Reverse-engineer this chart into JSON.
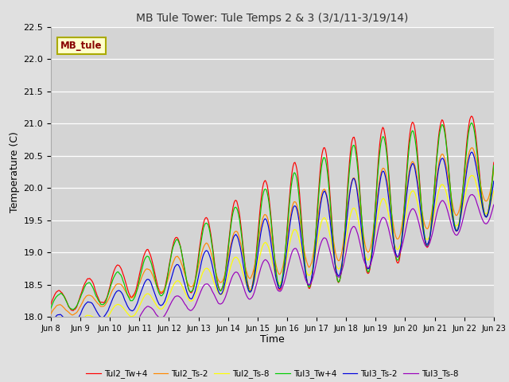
{
  "title": "MB Tule Tower: Tule Temps 2 & 3 (3/1/11-3/19/14)",
  "xlabel": "Time",
  "ylabel": "Temperature (C)",
  "ylim": [
    18.0,
    22.5
  ],
  "background_color": "#e0e0e0",
  "plot_bg_color": "#d4d4d4",
  "grid_color": "#ffffff",
  "series": [
    {
      "name": "Tul2_Tw+4",
      "color": "#ff0000"
    },
    {
      "name": "Tul2_Ts-2",
      "color": "#ff8800"
    },
    {
      "name": "Tul2_Ts-8",
      "color": "#ffff00"
    },
    {
      "name": "Tul3_Tw+4",
      "color": "#00cc00"
    },
    {
      "name": "Tul3_Ts-2",
      "color": "#0000dd"
    },
    {
      "name": "Tul3_Ts-8",
      "color": "#9900bb"
    }
  ],
  "xtick_labels": [
    "Jun 8",
    "Jun 9",
    "Jun 10",
    "Jun 11",
    "Jun 12",
    "Jun 13",
    "Jun 14",
    "Jun 15",
    "Jun 16",
    "Jun 17",
    "Jun 18",
    "Jun 19",
    "Jun 20",
    "Jun 21",
    "Jun 22",
    "Jun 23"
  ],
  "annotation_text": "MB_tule",
  "annotation_color": "#880000",
  "annotation_bg": "#ffffcc",
  "annotation_border": "#aaaa00"
}
